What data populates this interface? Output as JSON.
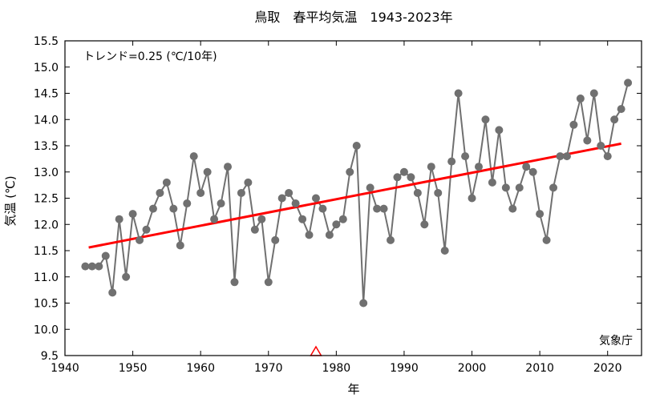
{
  "chart_data": {
    "type": "line",
    "title": "鳥取　春平均気温　1943-2023年",
    "xlabel": "年",
    "ylabel": "気温 (℃)",
    "xlim": [
      1940,
      2025
    ],
    "ylim": [
      9.5,
      15.5
    ],
    "xticks": [
      1940,
      1950,
      1960,
      1970,
      1980,
      1990,
      2000,
      2010,
      2020
    ],
    "yticks": [
      "9.5",
      "10.0",
      "10.5",
      "11.0",
      "11.5",
      "12.0",
      "12.5",
      "13.0",
      "13.5",
      "14.0",
      "14.5",
      "15.0",
      "15.5"
    ],
    "grid": false,
    "trend_text": "トレンド=0.25 (℃/10年)",
    "source_text": "気象庁",
    "series": [
      {
        "color": "#707070",
        "x": [
          1943,
          1944,
          1945,
          1946,
          1947,
          1948,
          1949,
          1950,
          1951,
          1952,
          1953,
          1954,
          1955,
          1956,
          1957,
          1958,
          1959,
          1960,
          1961,
          1962,
          1963,
          1964,
          1965,
          1966,
          1967,
          1968,
          1969,
          1970,
          1971,
          1972,
          1973,
          1974,
          1975,
          1976,
          1977,
          1978,
          1979,
          1980,
          1981,
          1982,
          1983,
          1984,
          1985,
          1986,
          1987,
          1988,
          1989,
          1990,
          1991,
          1992,
          1993,
          1994,
          1995,
          1996,
          1997,
          1998,
          1999,
          2000,
          2001,
          2002,
          2003,
          2004,
          2005,
          2006,
          2007,
          2008,
          2009,
          2010,
          2011,
          2012,
          2013,
          2014,
          2015,
          2016,
          2017,
          2018,
          2019,
          2020,
          2021,
          2022,
          2023
        ],
        "values": [
          11.2,
          11.2,
          11.2,
          11.4,
          10.7,
          12.1,
          11.0,
          12.2,
          11.7,
          11.9,
          12.3,
          12.6,
          12.8,
          12.3,
          11.6,
          12.4,
          13.3,
          12.6,
          13.0,
          12.1,
          12.4,
          13.1,
          10.9,
          12.6,
          12.8,
          11.9,
          12.1,
          10.9,
          11.7,
          12.5,
          12.6,
          12.4,
          12.1,
          11.8,
          12.5,
          12.3,
          11.8,
          12.0,
          12.1,
          13.0,
          13.5,
          10.5,
          12.7,
          12.3,
          12.3,
          11.7,
          12.9,
          13.0,
          12.9,
          12.6,
          12.0,
          13.1,
          12.6,
          11.5,
          13.2,
          14.5,
          13.3,
          12.5,
          13.1,
          14.0,
          12.8,
          13.8,
          12.7,
          12.3,
          12.7,
          13.1,
          13.0,
          12.2,
          11.7,
          12.7,
          13.3,
          13.3,
          13.9,
          14.4,
          13.6,
          14.5,
          13.5,
          13.3,
          14.0,
          14.2,
          14.7
        ]
      }
    ],
    "trend": {
      "color": "#ff0000",
      "x": [
        1943.5,
        2022
      ],
      "values": [
        11.56,
        13.54
      ]
    },
    "marker": {
      "type": "triangle",
      "color": "#ff0000",
      "x": 1977,
      "value": 9.5
    }
  }
}
